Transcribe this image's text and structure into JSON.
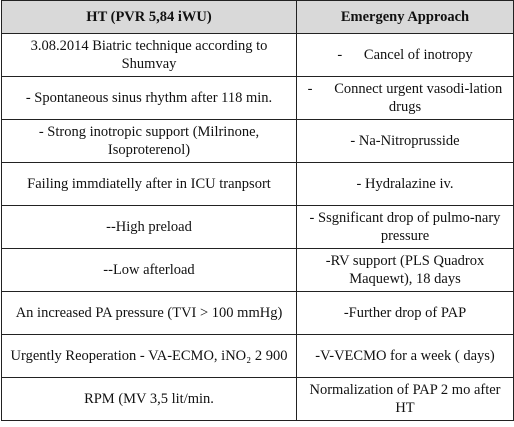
{
  "table": {
    "header": [
      "HT (PVR 5,84 iWU)",
      "Emergeny Approach"
    ],
    "rows": [
      [
        "3.08.2014 Biatric technique according to Shumvay",
        "-      Cancel of inotropy"
      ],
      [
        "- Spontaneous sinus rhythm after 118 min.",
        "-      Connect urgent vasodi-lation drugs"
      ],
      [
        "- Strong inotropic support (Milrinone, Isoproterenol)",
        "- Na-Nitroprusside"
      ],
      [
        "Failing  immdiatelly after in ICU tranpsort",
        "- Hydralazine iv."
      ],
      [
        "--High preload",
        "- Ssgnificant drop of pulmo-nary pressure"
      ],
      [
        "--Low afterload",
        "-RV support (PLS Quadrox Maquewt), 18 days"
      ],
      [
        "An increased PA pressure (TVI > 100 mmHg)",
        "-Further drop of PAP"
      ],
      [
        "Urgently Reoperation - VA-ECMO, iNO₂ 2 900",
        "-V-VECMO for a week ( days)"
      ],
      [
        "RPM (MV 3,5 lit/min.",
        "Normalization of PAP 2 mo after HT"
      ]
    ]
  }
}
